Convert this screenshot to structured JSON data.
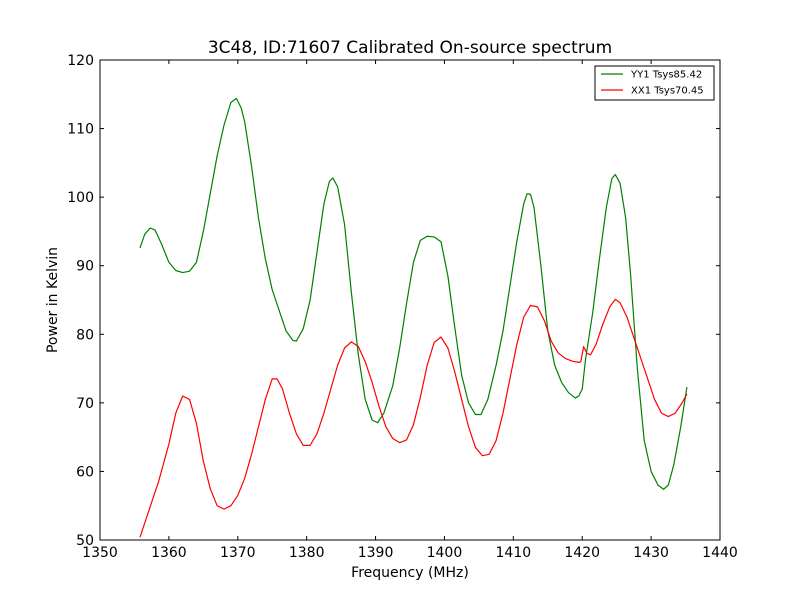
{
  "chart_data": {
    "type": "line",
    "title": "3C48, ID:71607 Calibrated On-source spectrum",
    "xlabel": "Frequency (MHz)",
    "ylabel": "Power in Kelvin",
    "xlim": [
      1350,
      1440
    ],
    "ylim": [
      50,
      120
    ],
    "xticks": [
      "1350",
      "1360",
      "1370",
      "1380",
      "1390",
      "1400",
      "1410",
      "1420",
      "1430",
      "1440"
    ],
    "yticks": [
      "50",
      "60",
      "70",
      "80",
      "90",
      "100",
      "110",
      "120"
    ],
    "grid": false,
    "legend_position": "top-right",
    "series": [
      {
        "name": "YY1 Tsys85.42",
        "color": "#008000",
        "points": [
          [
            1355.8,
            92.6
          ],
          [
            1356.5,
            94.6
          ],
          [
            1357.3,
            95.5
          ],
          [
            1358.0,
            95.2
          ],
          [
            1359.0,
            93.0
          ],
          [
            1360.0,
            90.5
          ],
          [
            1361.0,
            89.3
          ],
          [
            1362.0,
            89.0
          ],
          [
            1363.0,
            89.2
          ],
          [
            1364.0,
            90.5
          ],
          [
            1365.0,
            95.0
          ],
          [
            1366.0,
            100.5
          ],
          [
            1367.0,
            106.0
          ],
          [
            1368.0,
            110.5
          ],
          [
            1369.0,
            113.8
          ],
          [
            1369.8,
            114.4
          ],
          [
            1370.5,
            113.0
          ],
          [
            1371.0,
            111.0
          ],
          [
            1372.0,
            104.5
          ],
          [
            1373.0,
            97.0
          ],
          [
            1374.0,
            91.0
          ],
          [
            1375.0,
            86.5
          ],
          [
            1376.0,
            83.5
          ],
          [
            1377.0,
            80.5
          ],
          [
            1378.0,
            79.1
          ],
          [
            1378.5,
            79.0
          ],
          [
            1379.5,
            80.8
          ],
          [
            1380.5,
            85.0
          ],
          [
            1381.5,
            92.0
          ],
          [
            1382.5,
            99.0
          ],
          [
            1383.3,
            102.3
          ],
          [
            1383.8,
            102.8
          ],
          [
            1384.5,
            101.5
          ],
          [
            1385.5,
            96.0
          ],
          [
            1386.5,
            86.0
          ],
          [
            1387.5,
            77.0
          ],
          [
            1388.5,
            70.5
          ],
          [
            1389.5,
            67.5
          ],
          [
            1390.3,
            67.1
          ],
          [
            1391.2,
            68.5
          ],
          [
            1392.5,
            72.5
          ],
          [
            1393.5,
            78.0
          ],
          [
            1394.5,
            84.5
          ],
          [
            1395.5,
            90.5
          ],
          [
            1396.5,
            93.7
          ],
          [
            1397.5,
            94.3
          ],
          [
            1398.5,
            94.2
          ],
          [
            1399.5,
            93.5
          ],
          [
            1400.5,
            88.5
          ],
          [
            1401.5,
            81.0
          ],
          [
            1402.5,
            74.0
          ],
          [
            1403.5,
            70.0
          ],
          [
            1404.5,
            68.3
          ],
          [
            1405.3,
            68.3
          ],
          [
            1406.3,
            70.5
          ],
          [
            1407.5,
            75.5
          ],
          [
            1408.5,
            80.5
          ],
          [
            1409.5,
            87.0
          ],
          [
            1410.5,
            93.5
          ],
          [
            1411.5,
            99.0
          ],
          [
            1412.0,
            100.5
          ],
          [
            1412.5,
            100.4
          ],
          [
            1413.0,
            98.5
          ],
          [
            1414.0,
            90.0
          ],
          [
            1415.0,
            80.5
          ],
          [
            1416.0,
            75.5
          ],
          [
            1417.0,
            73.0
          ],
          [
            1418.0,
            71.5
          ],
          [
            1419.0,
            70.7
          ],
          [
            1419.5,
            71.0
          ],
          [
            1420.0,
            72.0
          ],
          [
            1420.5,
            76.5
          ],
          [
            1421.5,
            83.0
          ],
          [
            1422.5,
            91.0
          ],
          [
            1423.5,
            98.5
          ],
          [
            1424.3,
            102.7
          ],
          [
            1424.8,
            103.3
          ],
          [
            1425.5,
            102.0
          ],
          [
            1426.3,
            97.0
          ],
          [
            1427.0,
            89.0
          ],
          [
            1428.0,
            75.0
          ],
          [
            1429.0,
            64.5
          ],
          [
            1430.0,
            60.0
          ],
          [
            1431.0,
            58.0
          ],
          [
            1431.8,
            57.4
          ],
          [
            1432.5,
            58.0
          ],
          [
            1433.3,
            61.0
          ],
          [
            1434.3,
            66.5
          ],
          [
            1435.2,
            72.3
          ]
        ]
      },
      {
        "name": "XX1 Tsys70.45",
        "color": "#ff0000",
        "points": [
          [
            1355.8,
            50.4
          ],
          [
            1357.0,
            54.0
          ],
          [
            1358.5,
            58.5
          ],
          [
            1360.0,
            64.0
          ],
          [
            1361.0,
            68.5
          ],
          [
            1362.0,
            71.0
          ],
          [
            1363.0,
            70.5
          ],
          [
            1364.0,
            67.0
          ],
          [
            1365.0,
            61.5
          ],
          [
            1366.0,
            57.5
          ],
          [
            1367.0,
            55.0
          ],
          [
            1368.0,
            54.5
          ],
          [
            1369.0,
            55.0
          ],
          [
            1370.0,
            56.5
          ],
          [
            1371.0,
            59.0
          ],
          [
            1372.0,
            62.5
          ],
          [
            1373.0,
            66.5
          ],
          [
            1374.0,
            70.5
          ],
          [
            1375.0,
            73.5
          ],
          [
            1375.7,
            73.5
          ],
          [
            1376.5,
            72.0
          ],
          [
            1377.5,
            68.5
          ],
          [
            1378.5,
            65.5
          ],
          [
            1379.5,
            63.8
          ],
          [
            1380.5,
            63.8
          ],
          [
            1381.5,
            65.5
          ],
          [
            1382.5,
            68.5
          ],
          [
            1383.5,
            72.0
          ],
          [
            1384.5,
            75.5
          ],
          [
            1385.5,
            78.0
          ],
          [
            1386.5,
            78.9
          ],
          [
            1387.5,
            78.2
          ],
          [
            1388.5,
            76.0
          ],
          [
            1389.5,
            73.0
          ],
          [
            1390.5,
            69.5
          ],
          [
            1391.5,
            66.5
          ],
          [
            1392.5,
            64.8
          ],
          [
            1393.5,
            64.2
          ],
          [
            1394.5,
            64.6
          ],
          [
            1395.5,
            66.8
          ],
          [
            1396.5,
            70.8
          ],
          [
            1397.5,
            75.5
          ],
          [
            1398.5,
            78.8
          ],
          [
            1399.5,
            79.6
          ],
          [
            1400.5,
            78.0
          ],
          [
            1401.5,
            74.5
          ],
          [
            1402.5,
            70.5
          ],
          [
            1403.5,
            66.5
          ],
          [
            1404.5,
            63.5
          ],
          [
            1405.5,
            62.3
          ],
          [
            1406.5,
            62.5
          ],
          [
            1407.5,
            64.5
          ],
          [
            1408.5,
            68.5
          ],
          [
            1409.5,
            73.5
          ],
          [
            1410.5,
            78.5
          ],
          [
            1411.5,
            82.5
          ],
          [
            1412.5,
            84.2
          ],
          [
            1413.5,
            84.0
          ],
          [
            1414.5,
            82.0
          ],
          [
            1415.5,
            79.0
          ],
          [
            1416.5,
            77.3
          ],
          [
            1417.5,
            76.5
          ],
          [
            1418.5,
            76.1
          ],
          [
            1419.5,
            75.9
          ],
          [
            1419.8,
            76.0
          ],
          [
            1420.2,
            78.2
          ],
          [
            1420.7,
            77.2
          ],
          [
            1421.2,
            77.0
          ],
          [
            1422.0,
            78.5
          ],
          [
            1423.0,
            81.5
          ],
          [
            1424.0,
            84.0
          ],
          [
            1424.8,
            85.1
          ],
          [
            1425.5,
            84.6
          ],
          [
            1426.5,
            82.5
          ],
          [
            1427.5,
            79.5
          ],
          [
            1428.5,
            76.5
          ],
          [
            1429.5,
            73.5
          ],
          [
            1430.5,
            70.5
          ],
          [
            1431.5,
            68.5
          ],
          [
            1432.5,
            68.0
          ],
          [
            1433.5,
            68.5
          ],
          [
            1434.5,
            70.0
          ],
          [
            1435.2,
            71.3
          ]
        ]
      }
    ]
  }
}
